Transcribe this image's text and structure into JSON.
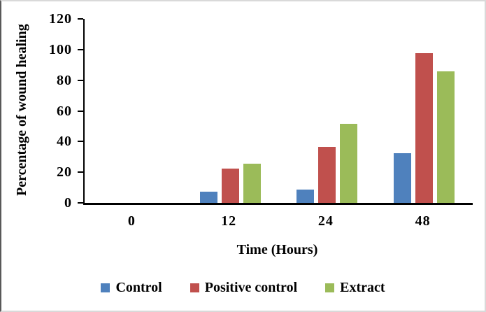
{
  "chart_data": {
    "type": "bar",
    "title": "",
    "xlabel": "Time (Hours)",
    "ylabel": "Percentage of wound healing",
    "categories": [
      "0",
      "12",
      "24",
      "48"
    ],
    "series": [
      {
        "name": "Control",
        "color": "#4F81BD",
        "values": [
          0,
          7.5,
          8.5,
          32.5
        ]
      },
      {
        "name": "Positive control",
        "color": "#C0504D",
        "values": [
          0,
          22.5,
          36.5,
          97.5
        ]
      },
      {
        "name": "Extract",
        "color": "#9BBB59",
        "values": [
          0,
          25.5,
          51.5,
          86
        ]
      }
    ],
    "ylim": [
      0,
      120
    ],
    "yticks": [
      0,
      20,
      40,
      60,
      80,
      100,
      120
    ],
    "grid": false,
    "legend_position": "bottom",
    "axis_color": "#000000",
    "background_color": "#ffffff"
  }
}
